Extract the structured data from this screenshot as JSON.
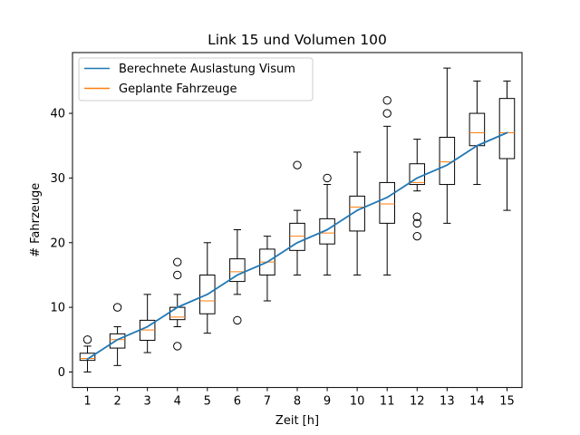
{
  "chart_data": {
    "type": "boxplot",
    "title": "Link 15 und Volumen 100",
    "xlabel": "Zeit [h]",
    "ylabel": "# Fahrzeuge",
    "xlim": [
      0.5,
      15.5
    ],
    "ylim": [
      -2.4,
      49.4
    ],
    "x_ticks": [
      1,
      2,
      3,
      4,
      5,
      6,
      7,
      8,
      9,
      10,
      11,
      12,
      13,
      14,
      15
    ],
    "y_ticks": [
      0,
      10,
      20,
      30,
      40
    ],
    "grid": false,
    "legend": {
      "placement": "top-left",
      "entries": [
        "Berechnete Auslastung Visum",
        "Geplante Fahrzeuge"
      ]
    },
    "line_series": {
      "name": "Berechnete Auslastung Visum",
      "color": "#1f77b4",
      "x": [
        1,
        2,
        3,
        4,
        5,
        6,
        7,
        8,
        9,
        10,
        11,
        12,
        13,
        14,
        15
      ],
      "y": [
        2.0,
        5.0,
        7.0,
        10.0,
        12.0,
        15.0,
        17.0,
        20.0,
        22.0,
        25.0,
        27.0,
        30.0,
        32.0,
        35.0,
        37.0
      ]
    },
    "box_series": {
      "name": "Geplante Fahrzeuge",
      "median_color": "#ff7f0e",
      "boxes": [
        {
          "x": 1,
          "whislo": 0,
          "q1": 1.8,
          "med": 2.1,
          "q3": 2.9,
          "whishi": 4,
          "fliers": [
            5
          ]
        },
        {
          "x": 2,
          "whislo": 1,
          "q1": 3.7,
          "med": 5.0,
          "q3": 5.9,
          "whishi": 7,
          "fliers": [
            10
          ]
        },
        {
          "x": 3,
          "whislo": 3,
          "q1": 4.9,
          "med": 6.5,
          "q3": 8.0,
          "whishi": 12,
          "fliers": []
        },
        {
          "x": 4,
          "whislo": 7,
          "q1": 8.1,
          "med": 8.5,
          "q3": 10.0,
          "whishi": 12,
          "fliers": [
            4,
            15,
            17
          ]
        },
        {
          "x": 5,
          "whislo": 6,
          "q1": 9.0,
          "med": 11.0,
          "q3": 15.0,
          "whishi": 20,
          "fliers": []
        },
        {
          "x": 6,
          "whislo": 12,
          "q1": 14.0,
          "med": 15.5,
          "q3": 17.5,
          "whishi": 22,
          "fliers": [
            8
          ]
        },
        {
          "x": 7,
          "whislo": 11,
          "q1": 15.0,
          "med": 17.0,
          "q3": 19.0,
          "whishi": 21,
          "fliers": []
        },
        {
          "x": 8,
          "whislo": 15,
          "q1": 18.8,
          "med": 21.0,
          "q3": 23.0,
          "whishi": 25,
          "fliers": [
            32
          ]
        },
        {
          "x": 9,
          "whislo": 15,
          "q1": 19.8,
          "med": 21.5,
          "q3": 23.7,
          "whishi": 29,
          "fliers": [
            30
          ]
        },
        {
          "x": 10,
          "whislo": 15,
          "q1": 21.8,
          "med": 25.5,
          "q3": 27.2,
          "whishi": 34,
          "fliers": []
        },
        {
          "x": 11,
          "whislo": 15,
          "q1": 23.0,
          "med": 26.0,
          "q3": 29.3,
          "whishi": 38,
          "fliers": [
            40,
            42
          ]
        },
        {
          "x": 12,
          "whislo": 28,
          "q1": 29.0,
          "med": 29.3,
          "q3": 32.2,
          "whishi": 36,
          "fliers": [
            21,
            23,
            24
          ]
        },
        {
          "x": 13,
          "whislo": 23,
          "q1": 29.0,
          "med": 32.5,
          "q3": 36.3,
          "whishi": 47,
          "fliers": []
        },
        {
          "x": 14,
          "whislo": 29,
          "q1": 35.0,
          "med": 37.0,
          "q3": 40.0,
          "whishi": 45,
          "fliers": []
        },
        {
          "x": 15,
          "whislo": 25,
          "q1": 33.0,
          "med": 37.0,
          "q3": 42.3,
          "whishi": 45,
          "fliers": []
        }
      ]
    }
  }
}
